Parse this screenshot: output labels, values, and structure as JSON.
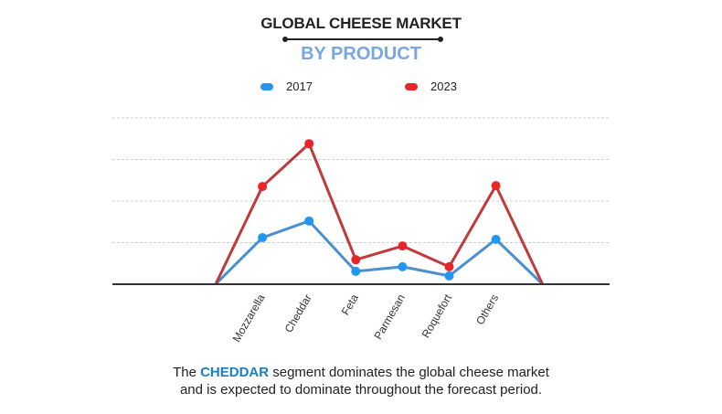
{
  "chart_data": {
    "type": "line",
    "title": "GLOBAL CHEESE MARKET",
    "subtitle": "BY PRODUCT",
    "categories": [
      "",
      "Mozzarella",
      "Cheddar",
      "Feta",
      "Parmesan",
      "Roquefort",
      "Others",
      ""
    ],
    "series": [
      {
        "name": "2017",
        "color": "#2196f3",
        "line_color": "#4a90d0",
        "values": [
          0,
          1.12,
          1.52,
          0.31,
          0.42,
          0.2,
          1.08,
          0
        ]
      },
      {
        "name": "2023",
        "color": "#e8262a",
        "line_color": "#c0393b",
        "values": [
          0,
          2.35,
          3.38,
          0.59,
          0.92,
          0.42,
          2.37,
          0
        ]
      }
    ],
    "ylim": [
      0,
      4
    ],
    "grid": true,
    "y_tick_labels": false,
    "legend_placement": "top"
  },
  "footer": {
    "pre": "The ",
    "highlight": "CHEDDAR",
    "post": " segment dominates the global cheese market",
    "line2": "and is expected to dominate throughout the forecast period."
  }
}
